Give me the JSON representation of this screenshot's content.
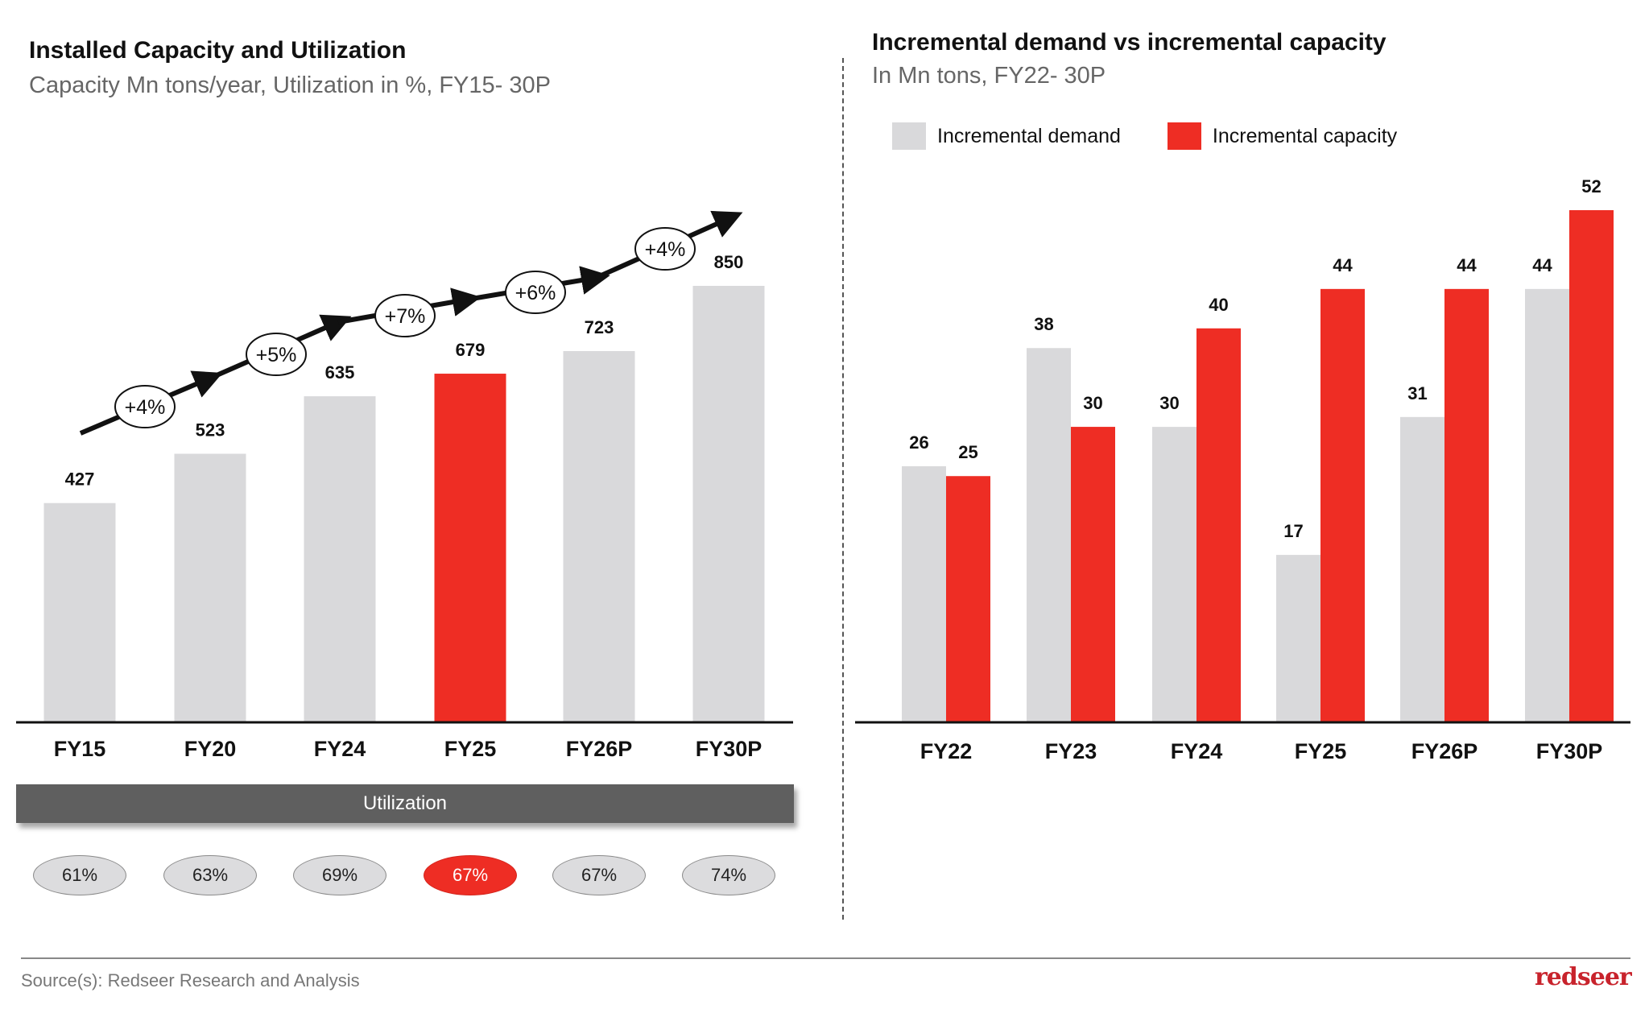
{
  "colors": {
    "highlight": "#ee2d24",
    "bar_grey": "#d9d9db",
    "axis": "#111111",
    "util_band": "#5f5f5f"
  },
  "chart_data": [
    {
      "type": "bar",
      "title": "Installed Capacity and Utilization",
      "subtitle": "Capacity Mn tons/year, Utilization in %, FY15- 30P",
      "categories": [
        "FY15",
        "FY20",
        "FY24",
        "FY25",
        "FY26P",
        "FY30P"
      ],
      "values": [
        427,
        523,
        635,
        679,
        723,
        850
      ],
      "highlight_index": 3,
      "ylim": [
        0,
        850
      ],
      "grid": false,
      "growth_arrow": {
        "labels": [
          "+4%",
          "+5%",
          "+7%",
          "+6%",
          "+4%"
        ]
      },
      "utilization": {
        "label": "Utilization",
        "values": [
          "61%",
          "63%",
          "69%",
          "67%",
          "67%",
          "74%"
        ],
        "highlight_index": 3
      }
    },
    {
      "type": "bar",
      "title": "Incremental demand vs incremental capacity",
      "subtitle": "In Mn tons, FY22- 30P",
      "categories": [
        "FY22",
        "FY23",
        "FY24",
        "FY25",
        "FY26P",
        "FY30P"
      ],
      "series": [
        {
          "name": "Incremental demand",
          "color": "#d9d9db",
          "values": [
            26,
            38,
            30,
            17,
            31,
            44
          ]
        },
        {
          "name": "Incremental capacity",
          "color": "#ee2d24",
          "values": [
            25,
            30,
            40,
            44,
            44,
            52
          ]
        }
      ],
      "ylim": [
        0,
        52
      ],
      "grid": false,
      "legend": "top-left"
    }
  ],
  "footer": {
    "source": "Source(s): Redseer Research and Analysis",
    "logo": "redseer"
  }
}
